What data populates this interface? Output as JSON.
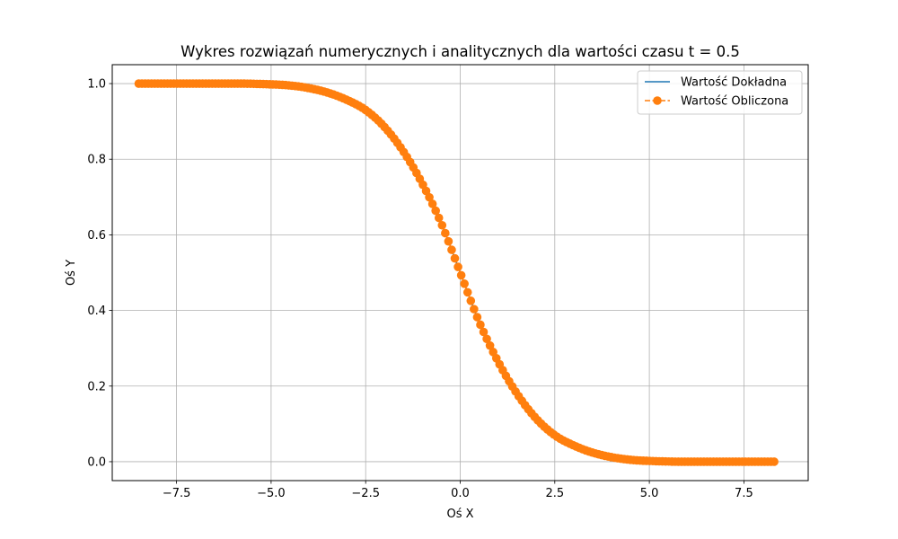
{
  "chart_data": {
    "type": "line",
    "title": "Wykres rozwiązań numerycznych i analitycznych dla wartości czasu t = 0.5",
    "xlabel": "Oś X",
    "ylabel": "Oś Y",
    "xlim": [
      -9.2,
      9.2
    ],
    "ylim": [
      -0.05,
      1.05
    ],
    "xticks": [
      -7.5,
      -5.0,
      -2.5,
      0.0,
      2.5,
      5.0,
      7.5
    ],
    "xtick_labels": [
      "−7.5",
      "−5.0",
      "−2.5",
      "0.0",
      "2.5",
      "5.0",
      "7.5"
    ],
    "yticks": [
      0.0,
      0.2,
      0.4,
      0.6,
      0.8,
      1.0
    ],
    "ytick_labels": [
      "0.0",
      "0.2",
      "0.4",
      "0.6",
      "0.8",
      "1.0"
    ],
    "grid": true,
    "legend": "top-right",
    "x_range": [
      -8.5,
      8.3
    ],
    "series": [
      {
        "name": "Wartość Dokładna",
        "style": "solid line",
        "color": "#1f77b4",
        "x": [
          -8.5,
          -7.0,
          -6.0,
          -5.0,
          -4.5,
          -4.0,
          -3.5,
          -3.0,
          -2.5,
          -2.0,
          -1.5,
          -1.0,
          -0.5,
          0.0,
          0.5,
          1.0,
          1.5,
          2.0,
          2.5,
          3.0,
          3.5,
          4.0,
          4.5,
          5.0,
          6.0,
          7.0,
          8.3
        ],
        "values": [
          1.0,
          1.0,
          1.0,
          0.998,
          0.995,
          0.988,
          0.976,
          0.957,
          0.93,
          0.885,
          0.82,
          0.735,
          0.63,
          0.5,
          0.37,
          0.265,
          0.18,
          0.115,
          0.07,
          0.043,
          0.024,
          0.012,
          0.005,
          0.002,
          0.0,
          0.0,
          0.0
        ]
      },
      {
        "name": "Wartość Obliczona",
        "style": "dashed line with circle markers",
        "color": "#ff7f0e",
        "x": [
          -8.5,
          -7.0,
          -6.0,
          -5.0,
          -4.5,
          -4.0,
          -3.5,
          -3.0,
          -2.5,
          -2.0,
          -1.5,
          -1.0,
          -0.5,
          0.0,
          0.5,
          1.0,
          1.5,
          2.0,
          2.5,
          3.0,
          3.5,
          4.0,
          4.5,
          5.0,
          6.0,
          7.0,
          8.3
        ],
        "values": [
          1.0,
          1.0,
          1.0,
          0.998,
          0.995,
          0.988,
          0.976,
          0.957,
          0.93,
          0.885,
          0.82,
          0.735,
          0.63,
          0.5,
          0.37,
          0.265,
          0.18,
          0.115,
          0.07,
          0.043,
          0.024,
          0.012,
          0.005,
          0.002,
          0.0,
          0.0,
          0.0
        ]
      }
    ]
  }
}
